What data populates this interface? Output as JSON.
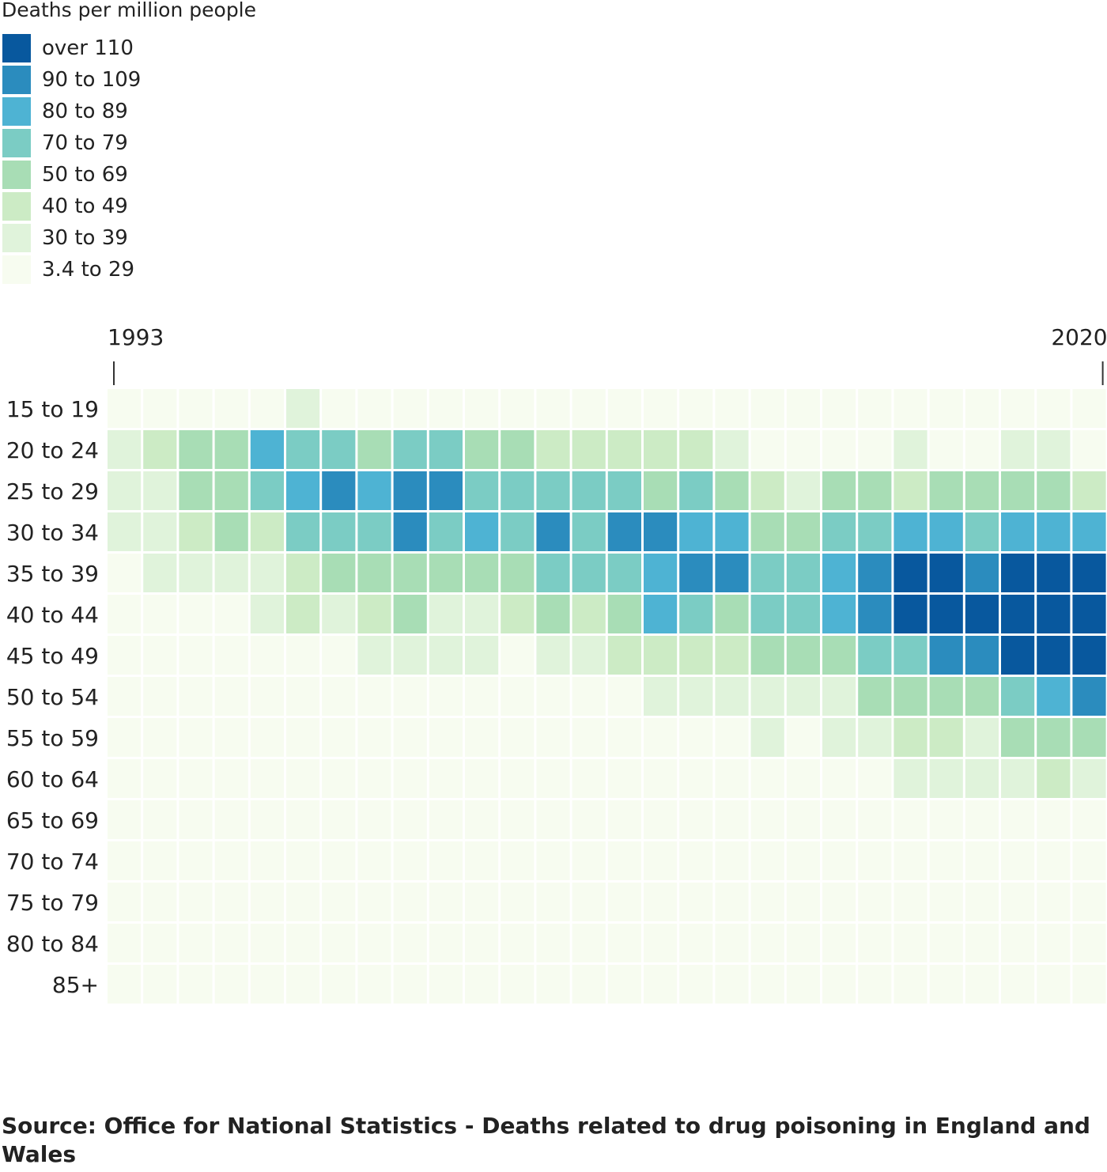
{
  "legend": {
    "title": "Deaths per million people",
    "items": [
      {
        "label": "over 110",
        "color": "#08589e"
      },
      {
        "label": "90 to 109",
        "color": "#2b8cbe"
      },
      {
        "label": "80 to 89",
        "color": "#4eb3d3"
      },
      {
        "label": "70 to 79",
        "color": "#7bccc4"
      },
      {
        "label": "50 to 69",
        "color": "#a8ddb5"
      },
      {
        "label": "40 to 49",
        "color": "#ccebc5"
      },
      {
        "label": "30 to 39",
        "color": "#e0f3db"
      },
      {
        "label": "3.4 to 29",
        "color": "#f7fcf0"
      }
    ]
  },
  "chart_data": {
    "type": "heatmap",
    "title": "",
    "xlabel": "",
    "ylabel": "",
    "x_tick_labels": [
      "1993",
      "2020"
    ],
    "x": [
      1993,
      1994,
      1995,
      1996,
      1997,
      1998,
      1999,
      2000,
      2001,
      2002,
      2003,
      2004,
      2005,
      2006,
      2007,
      2008,
      2009,
      2010,
      2011,
      2012,
      2013,
      2014,
      2015,
      2016,
      2017,
      2018,
      2019,
      2020
    ],
    "y": [
      "15 to 19",
      "20 to 24",
      "25 to 29",
      "30 to 34",
      "35 to 39",
      "40 to 44",
      "45 to 49",
      "50 to 54",
      "55 to 59",
      "60 to 64",
      "65 to 69",
      "70 to 74",
      "75 to 79",
      "80 to 84",
      "85+"
    ],
    "value_unit": "legend bin index (0 = 3.4 to 29 ... 7 = over 110)",
    "values": [
      [
        0,
        0,
        0,
        0,
        0,
        1,
        0,
        0,
        0,
        0,
        0,
        0,
        0,
        0,
        0,
        0,
        0,
        0,
        0,
        0,
        0,
        0,
        0,
        0,
        0,
        0,
        0,
        0
      ],
      [
        1,
        2,
        3,
        3,
        5,
        4,
        4,
        3,
        4,
        4,
        3,
        3,
        2,
        2,
        2,
        2,
        2,
        1,
        0,
        0,
        0,
        0,
        1,
        0,
        0,
        1,
        1,
        0
      ],
      [
        1,
        1,
        3,
        3,
        4,
        5,
        6,
        5,
        6,
        6,
        4,
        4,
        4,
        4,
        4,
        3,
        4,
        3,
        2,
        1,
        3,
        3,
        2,
        3,
        3,
        3,
        3,
        2
      ],
      [
        1,
        1,
        2,
        3,
        2,
        4,
        4,
        4,
        6,
        4,
        5,
        4,
        6,
        4,
        6,
        6,
        5,
        5,
        3,
        3,
        4,
        4,
        5,
        5,
        4,
        5,
        5,
        5
      ],
      [
        0,
        1,
        1,
        1,
        1,
        2,
        3,
        3,
        3,
        3,
        3,
        3,
        4,
        4,
        4,
        5,
        6,
        6,
        4,
        4,
        5,
        6,
        7,
        7,
        6,
        7,
        7,
        7
      ],
      [
        0,
        0,
        0,
        0,
        1,
        2,
        1,
        2,
        3,
        1,
        1,
        2,
        3,
        2,
        3,
        5,
        4,
        3,
        4,
        4,
        5,
        6,
        7,
        7,
        7,
        7,
        7,
        7
      ],
      [
        0,
        0,
        0,
        0,
        0,
        0,
        0,
        1,
        1,
        1,
        1,
        0,
        1,
        1,
        2,
        2,
        2,
        2,
        3,
        3,
        3,
        4,
        4,
        6,
        6,
        7,
        7,
        7
      ],
      [
        0,
        0,
        0,
        0,
        0,
        0,
        0,
        0,
        0,
        0,
        0,
        0,
        0,
        0,
        0,
        1,
        1,
        1,
        1,
        1,
        1,
        3,
        3,
        3,
        3,
        4,
        5,
        6
      ],
      [
        0,
        0,
        0,
        0,
        0,
        0,
        0,
        0,
        0,
        0,
        0,
        0,
        0,
        0,
        0,
        0,
        0,
        0,
        1,
        0,
        1,
        1,
        2,
        2,
        1,
        3,
        3,
        3
      ],
      [
        0,
        0,
        0,
        0,
        0,
        0,
        0,
        0,
        0,
        0,
        0,
        0,
        0,
        0,
        0,
        0,
        0,
        0,
        0,
        0,
        0,
        0,
        1,
        1,
        1,
        1,
        2,
        1
      ],
      [
        0,
        0,
        0,
        0,
        0,
        0,
        0,
        0,
        0,
        0,
        0,
        0,
        0,
        0,
        0,
        0,
        0,
        0,
        0,
        0,
        0,
        0,
        0,
        0,
        0,
        0,
        0,
        0
      ],
      [
        0,
        0,
        0,
        0,
        0,
        0,
        0,
        0,
        0,
        0,
        0,
        0,
        0,
        0,
        0,
        0,
        0,
        0,
        0,
        0,
        0,
        0,
        0,
        0,
        0,
        0,
        0,
        0
      ],
      [
        0,
        0,
        0,
        0,
        0,
        0,
        0,
        0,
        0,
        0,
        0,
        0,
        0,
        0,
        0,
        0,
        0,
        0,
        0,
        0,
        0,
        0,
        0,
        0,
        0,
        0,
        0,
        0
      ],
      [
        0,
        0,
        0,
        0,
        0,
        0,
        0,
        0,
        0,
        0,
        0,
        0,
        0,
        0,
        0,
        0,
        0,
        0,
        0,
        0,
        0,
        0,
        0,
        0,
        0,
        0,
        0,
        0
      ],
      [
        0,
        0,
        0,
        0,
        0,
        0,
        0,
        0,
        0,
        0,
        0,
        0,
        0,
        0,
        0,
        0,
        0,
        0,
        0,
        0,
        0,
        0,
        0,
        0,
        0,
        0,
        0,
        0
      ]
    ],
    "source": "Source: Office for National Statistics - Deaths related to drug poisoning in England and Wales"
  }
}
